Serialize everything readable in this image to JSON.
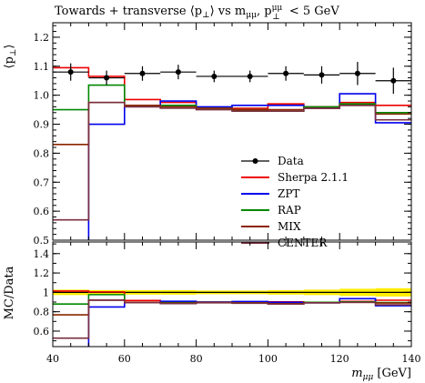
{
  "chart_data": {
    "type": "line",
    "title": "Towards + transverse ⟨p⊥⟩ vs mμμ, p⊥μμ < 5 GeV",
    "title_parts": {
      "prefix": "Towards + transverse ⟨p",
      "perp": "⊥",
      "mid1": "⟩ vs m",
      "mumu_1": "μμ",
      "mid2": ", p",
      "mumu_2": "μμ",
      "perp_2": "⊥",
      "suffix": " < 5 GeV"
    },
    "xlabel": "mμμ [GeV]",
    "xlabel_parts": {
      "m": "m",
      "sub": "μμ",
      "unit": " [GeV]"
    },
    "ylabel": "⟨p⊥⟩",
    "ylabel_parts": {
      "open": "⟨p",
      "sub": "⊥",
      "close": "⟩"
    },
    "ratio_ylabel": "MC/Data",
    "xlim": [
      40,
      140
    ],
    "ylim": [
      0.5,
      1.25
    ],
    "ratio_ylim": [
      0.44,
      1.52
    ],
    "x_ticks": [
      "40",
      "60",
      "80",
      "100",
      "120",
      "140"
    ],
    "x_tick_values": [
      40,
      60,
      80,
      100,
      120,
      140
    ],
    "y_ticks": [
      "0.5",
      "0.6",
      "0.7",
      "0.8",
      "0.9",
      "1.0",
      "1.1",
      "1.2"
    ],
    "y_tick_values": [
      0.5,
      0.6,
      0.7,
      0.8,
      0.9,
      1.0,
      1.1,
      1.2
    ],
    "ratio_y_ticks": [
      "0.6",
      "0.8",
      "1",
      "1.2",
      "1.4"
    ],
    "ratio_y_tick_values": [
      0.6,
      0.8,
      1.0,
      1.2,
      1.4
    ],
    "bin_edges": [
      40,
      50,
      60,
      70,
      80,
      90,
      100,
      110,
      120,
      130,
      140
    ],
    "data": {
      "name": "Data",
      "color": "#000000",
      "x": [
        45,
        55,
        65,
        75,
        85,
        95,
        105,
        115,
        125,
        135
      ],
      "y": [
        1.08,
        1.06,
        1.075,
        1.08,
        1.065,
        1.065,
        1.075,
        1.07,
        1.075,
        1.05
      ],
      "yerr": [
        0.03,
        0.025,
        0.025,
        0.025,
        0.02,
        0.02,
        0.025,
        0.03,
        0.04,
        0.045
      ]
    },
    "data_band": {
      "color": "#ffee00",
      "half_width": [
        0.03,
        0.025,
        0.025,
        0.025,
        0.02,
        0.02,
        0.025,
        0.03,
        0.04,
        0.045
      ]
    },
    "series": [
      {
        "name": "Sherpa 2.1.1",
        "color": "#ee0000",
        "values": [
          1.095,
          1.065,
          0.985,
          0.975,
          0.955,
          0.955,
          0.97,
          0.96,
          0.975,
          0.965
        ]
      },
      {
        "name": "ZPT",
        "color": "#0000ee",
        "values": [
          0.41,
          0.9,
          0.965,
          0.98,
          0.96,
          0.965,
          0.965,
          0.955,
          1.005,
          0.905
        ]
      },
      {
        "name": "RAP",
        "color": "#008800",
        "values": [
          0.95,
          1.035,
          0.965,
          0.965,
          0.955,
          0.95,
          0.945,
          0.96,
          0.97,
          0.94
        ]
      },
      {
        "name": "MIX",
        "color": "#8b2500",
        "values": [
          0.83,
          0.975,
          0.965,
          0.96,
          0.955,
          0.95,
          0.95,
          0.955,
          0.965,
          0.935
        ]
      },
      {
        "name": "CENTER",
        "color": "#7a2e3e",
        "values": [
          0.57,
          0.975,
          0.96,
          0.955,
          0.95,
          0.945,
          0.945,
          0.955,
          0.965,
          0.915
        ]
      }
    ],
    "legend": {
      "position": "center-right",
      "entries": [
        "Data",
        "Sherpa 2.1.1",
        "ZPT",
        "RAP",
        "MIX",
        "CENTER"
      ]
    },
    "grid": false
  }
}
